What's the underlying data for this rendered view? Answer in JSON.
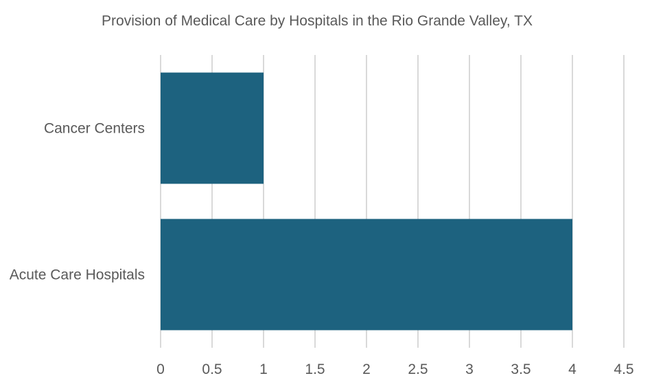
{
  "chart_data": {
    "type": "bar",
    "orientation": "horizontal",
    "title": "Provision of Medical Care by Hospitals in the Rio Grande Valley, TX",
    "categories": [
      "Cancer Centers",
      "Acute Care Hospitals"
    ],
    "values": [
      1,
      4
    ],
    "xlim": [
      0,
      4.5
    ],
    "x_ticks": [
      "0",
      "0.5",
      "1",
      "1.5",
      "2",
      "2.5",
      "3",
      "3.5",
      "4",
      "4.5"
    ],
    "grid": true,
    "legend": "none",
    "bar_color": "#1d627f"
  }
}
